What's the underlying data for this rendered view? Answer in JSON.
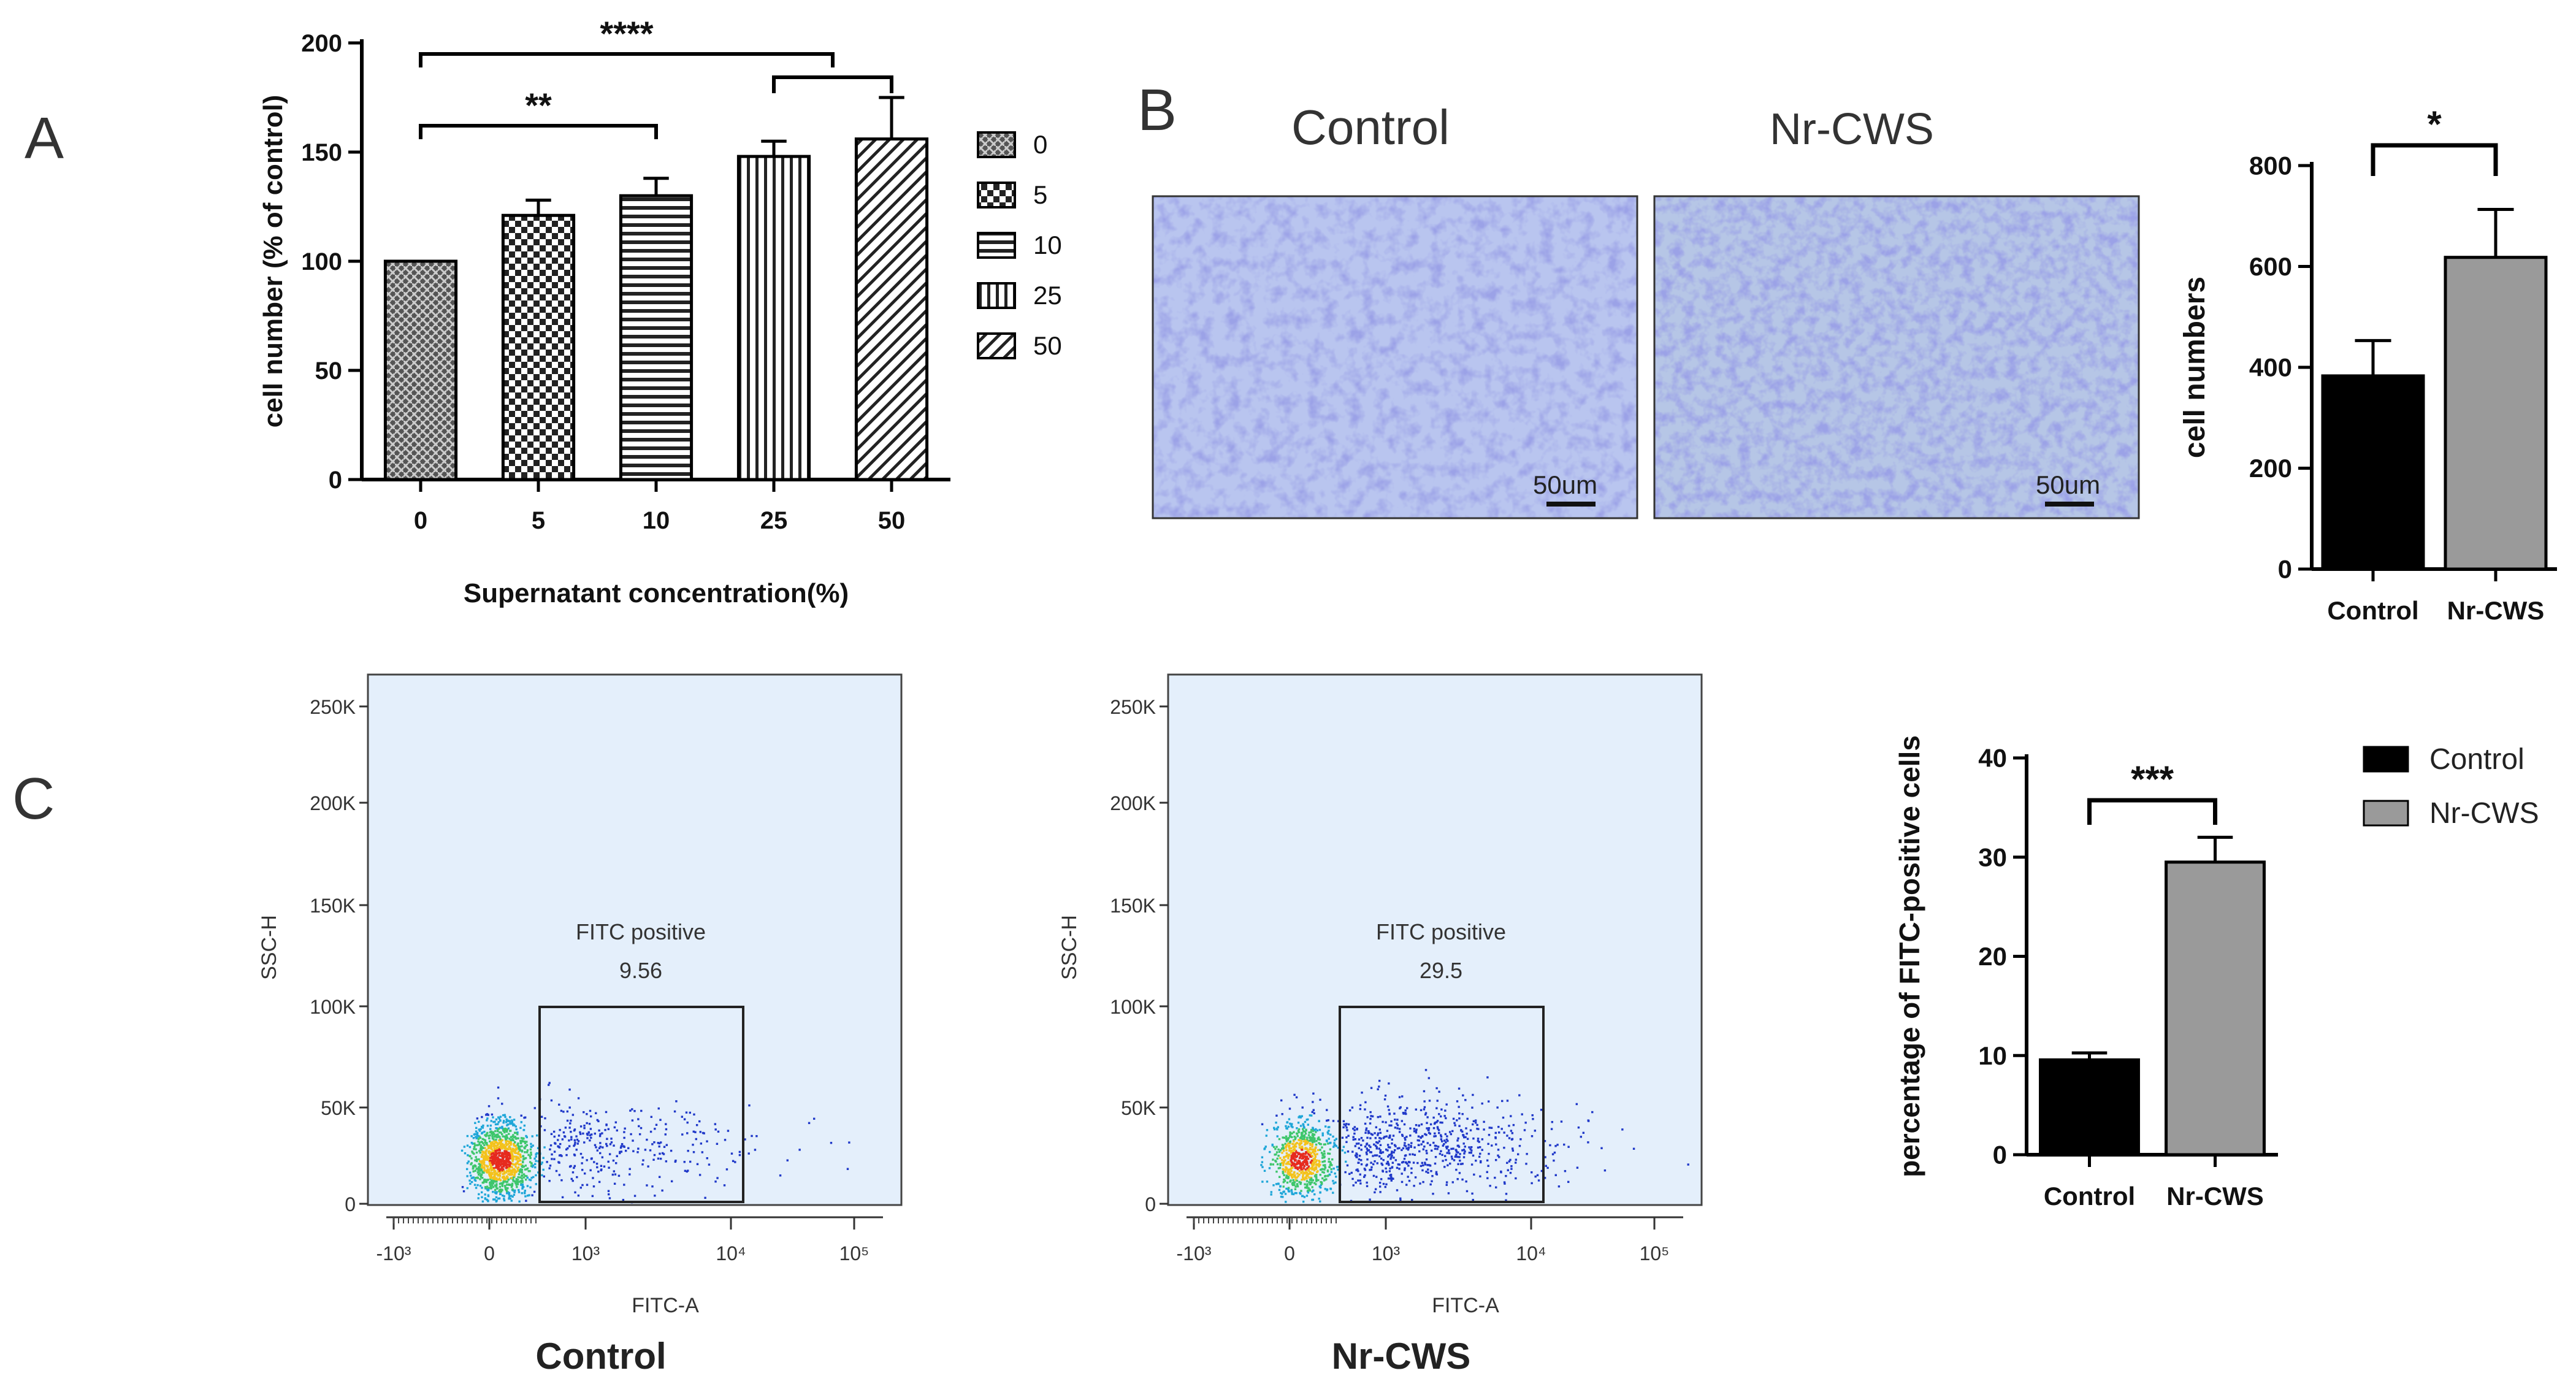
{
  "panel_labels": {
    "a": "A",
    "b": "B",
    "c": "C"
  },
  "chart_data": [
    {
      "id": "A",
      "type": "bar",
      "categories": [
        "0",
        "5",
        "10",
        "25",
        "50"
      ],
      "values": [
        100,
        121,
        130,
        148,
        156
      ],
      "errors": [
        0,
        7,
        8,
        7,
        19
      ],
      "ylim": [
        0,
        200
      ],
      "yticks": [
        0,
        50,
        100,
        150,
        200
      ],
      "xlabel": "Supernatant concentration(%)",
      "ylabel": "cell number (% of control)",
      "legend": [
        "0",
        "5",
        "10",
        "25",
        "50"
      ],
      "significance": [
        {
          "label": "**",
          "from": 0,
          "to": 2
        },
        {
          "label": "****",
          "from": 0,
          "to": 3.5
        },
        {
          "label": "",
          "from": 3,
          "to": 4
        }
      ]
    },
    {
      "id": "B",
      "type": "bar",
      "categories": [
        "Control",
        "Nr-CWS"
      ],
      "values": [
        383,
        618
      ],
      "errors": [
        70,
        95
      ],
      "colors": [
        "#000000",
        "#9a9a9a"
      ],
      "ylim": [
        0,
        800
      ],
      "yticks": [
        0,
        200,
        400,
        600,
        800
      ],
      "ylabel": "cell numbers",
      "significance": [
        {
          "label": "*",
          "from": 0,
          "to": 1
        }
      ]
    },
    {
      "id": "C",
      "type": "bar",
      "categories": [
        "Control",
        "Nr-CWS"
      ],
      "values": [
        9.56,
        29.5
      ],
      "errors": [
        0.7,
        2.5
      ],
      "colors": [
        "#000000",
        "#9a9a9a"
      ],
      "ylim": [
        0,
        40
      ],
      "yticks": [
        0,
        10,
        20,
        30,
        40
      ],
      "ylabel": "percentage of FITC-positive cells",
      "legend": [
        "Control",
        "Nr-CWS"
      ],
      "significance": [
        {
          "label": "***",
          "from": 0,
          "to": 1
        }
      ]
    },
    {
      "id": "C-flow-control",
      "type": "scatter",
      "title": "Control",
      "xlabel": "FITC-A",
      "ylabel": "SSC-H",
      "gate_label": "FITC positive",
      "gate_value": "9.56",
      "yticks": [
        "0",
        "50K",
        "100K",
        "150K",
        "200K",
        "250K"
      ],
      "xticks": [
        "-10³",
        "0",
        "10³",
        "10⁴",
        "10⁵"
      ]
    },
    {
      "id": "C-flow-nrcws",
      "type": "scatter",
      "title": "Nr-CWS",
      "xlabel": "FITC-A",
      "ylabel": "SSC-H",
      "gate_label": "FITC positive",
      "gate_value": "29.5",
      "yticks": [
        "0",
        "50K",
        "100K",
        "150K",
        "200K",
        "250K"
      ],
      "xticks": [
        "-10³",
        "0",
        "10³",
        "10⁴",
        "10⁵"
      ]
    }
  ],
  "micrographs": [
    {
      "title": "Control",
      "scale_label": "50um"
    },
    {
      "title": "Nr-CWS",
      "scale_label": "50um"
    }
  ]
}
